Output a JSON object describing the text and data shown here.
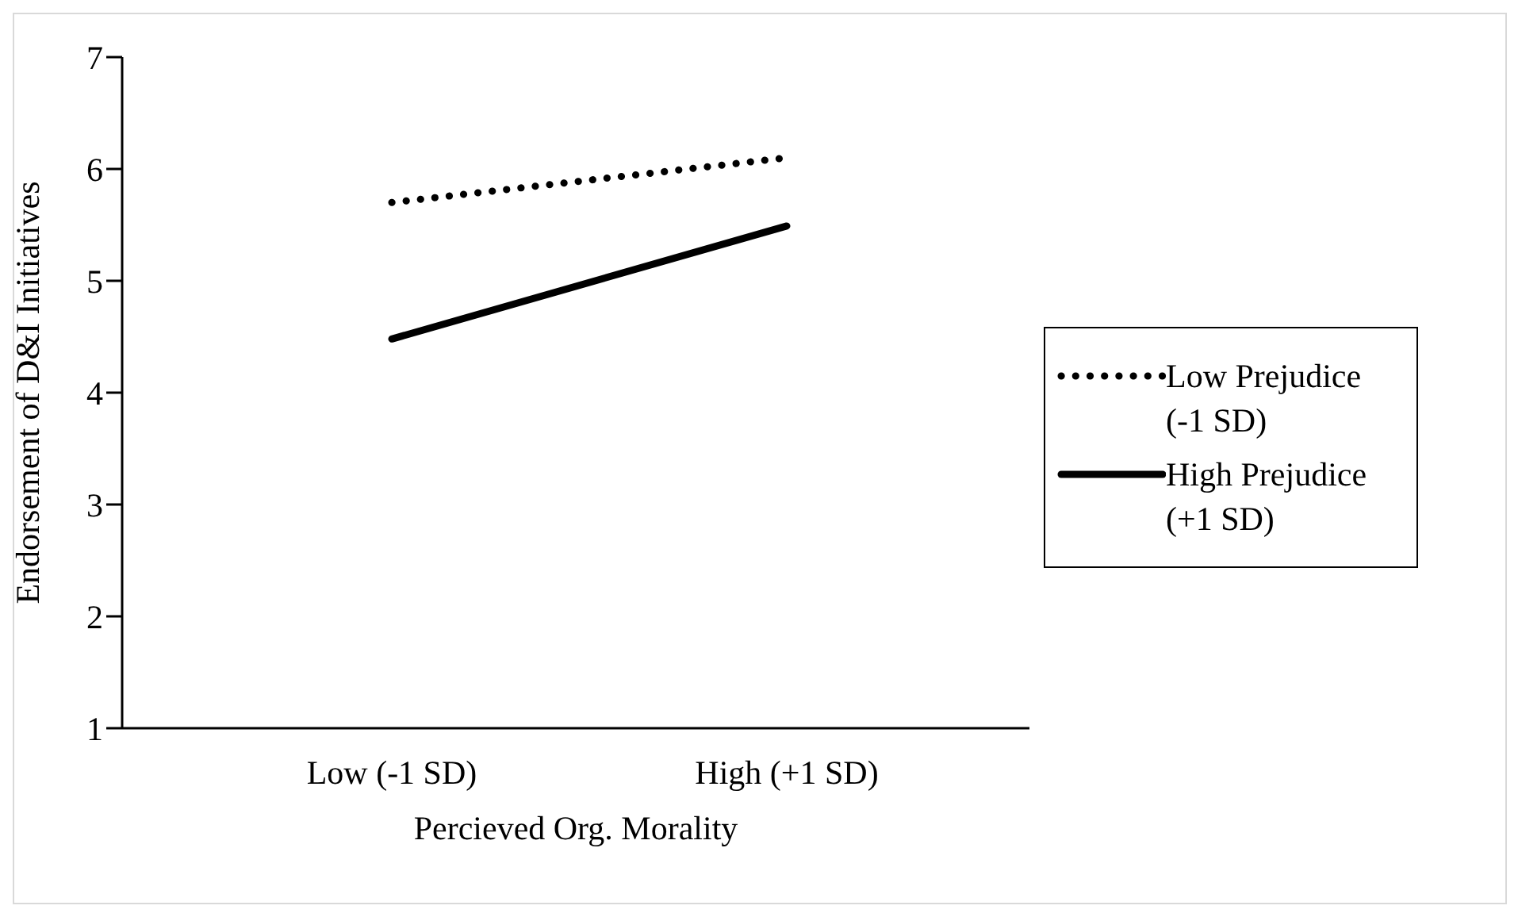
{
  "chart_data": {
    "type": "line",
    "xlabel": "Percieved Org. Morality",
    "ylabel": "Endorsement of D&I Initiatives",
    "categories": [
      "Low (-1 SD)",
      "High (+1 SD)"
    ],
    "series": [
      {
        "name": "Low Prejudice (-1 SD)",
        "color": "#000000",
        "values": [
          5.7,
          6.1
        ],
        "line_style": "dotted"
      },
      {
        "name": "High Prejudice (+1 SD)",
        "color": "#000000",
        "values": [
          4.48,
          5.49
        ],
        "line_style": "solid"
      }
    ],
    "ylim": [
      1,
      7
    ],
    "yticks": [
      1,
      2,
      3,
      4,
      5,
      6,
      7
    ],
    "legend": "right",
    "marker": "none"
  }
}
